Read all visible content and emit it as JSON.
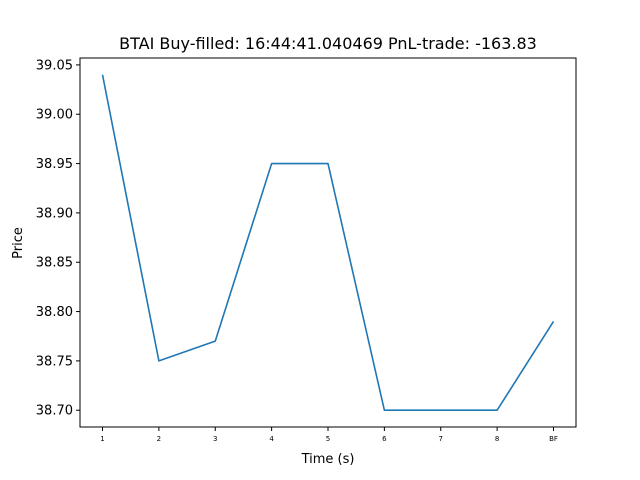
{
  "chart_data": {
    "type": "line",
    "title": "BTAI  Buy-filled:  16:44:41.040469  PnL-trade:  -163.83",
    "xlabel": "Time (s)",
    "ylabel": "Price",
    "categories": [
      "1",
      "2",
      "3",
      "4",
      "5",
      "6",
      "7",
      "8",
      "BF"
    ],
    "series": [
      {
        "values": [
          39.04,
          38.75,
          38.77,
          38.95,
          38.95,
          38.7,
          38.7,
          38.7,
          38.79
        ]
      }
    ],
    "ylim": [
      38.683,
      39.057
    ],
    "yticks": [
      "38.70",
      "38.75",
      "38.80",
      "38.85",
      "38.90",
      "38.95",
      "39.00",
      "39.05"
    ],
    "grid": false,
    "line_color": "#1f77b4"
  }
}
